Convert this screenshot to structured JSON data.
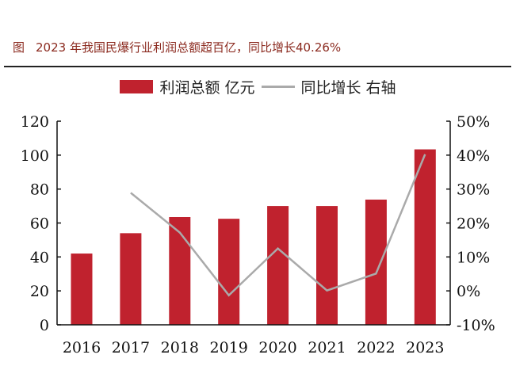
{
  "title": {
    "prefix": "图",
    "text": "2023 年我国民爆行业利润总额超百亿，同比增长40.26%"
  },
  "chart_data": {
    "type": "bar+line",
    "categories": [
      "2016",
      "2017",
      "2018",
      "2019",
      "2020",
      "2021",
      "2022",
      "2023"
    ],
    "series": [
      {
        "name": "利润总额 亿元",
        "type": "bar",
        "axis": "left",
        "color": "#c0222e",
        "values": [
          42,
          54,
          63.5,
          62.5,
          70,
          70,
          73.8,
          103.4
        ]
      },
      {
        "name": "同比增长 右轴",
        "type": "line",
        "axis": "right",
        "color": "#aaaaaa",
        "values": [
          null,
          28.9,
          17.2,
          -1.3,
          12.5,
          0.1,
          5.1,
          40.26
        ]
      }
    ],
    "left_axis": {
      "ylim": [
        0,
        120
      ],
      "ticks": [
        "0",
        "20",
        "40",
        "60",
        "80",
        "100",
        "120"
      ]
    },
    "right_axis": {
      "ylim": [
        -10,
        50
      ],
      "ticks": [
        "-10%",
        "0%",
        "10%",
        "20%",
        "30%",
        "40%",
        "50%"
      ]
    },
    "grid": false,
    "legend": "top"
  }
}
